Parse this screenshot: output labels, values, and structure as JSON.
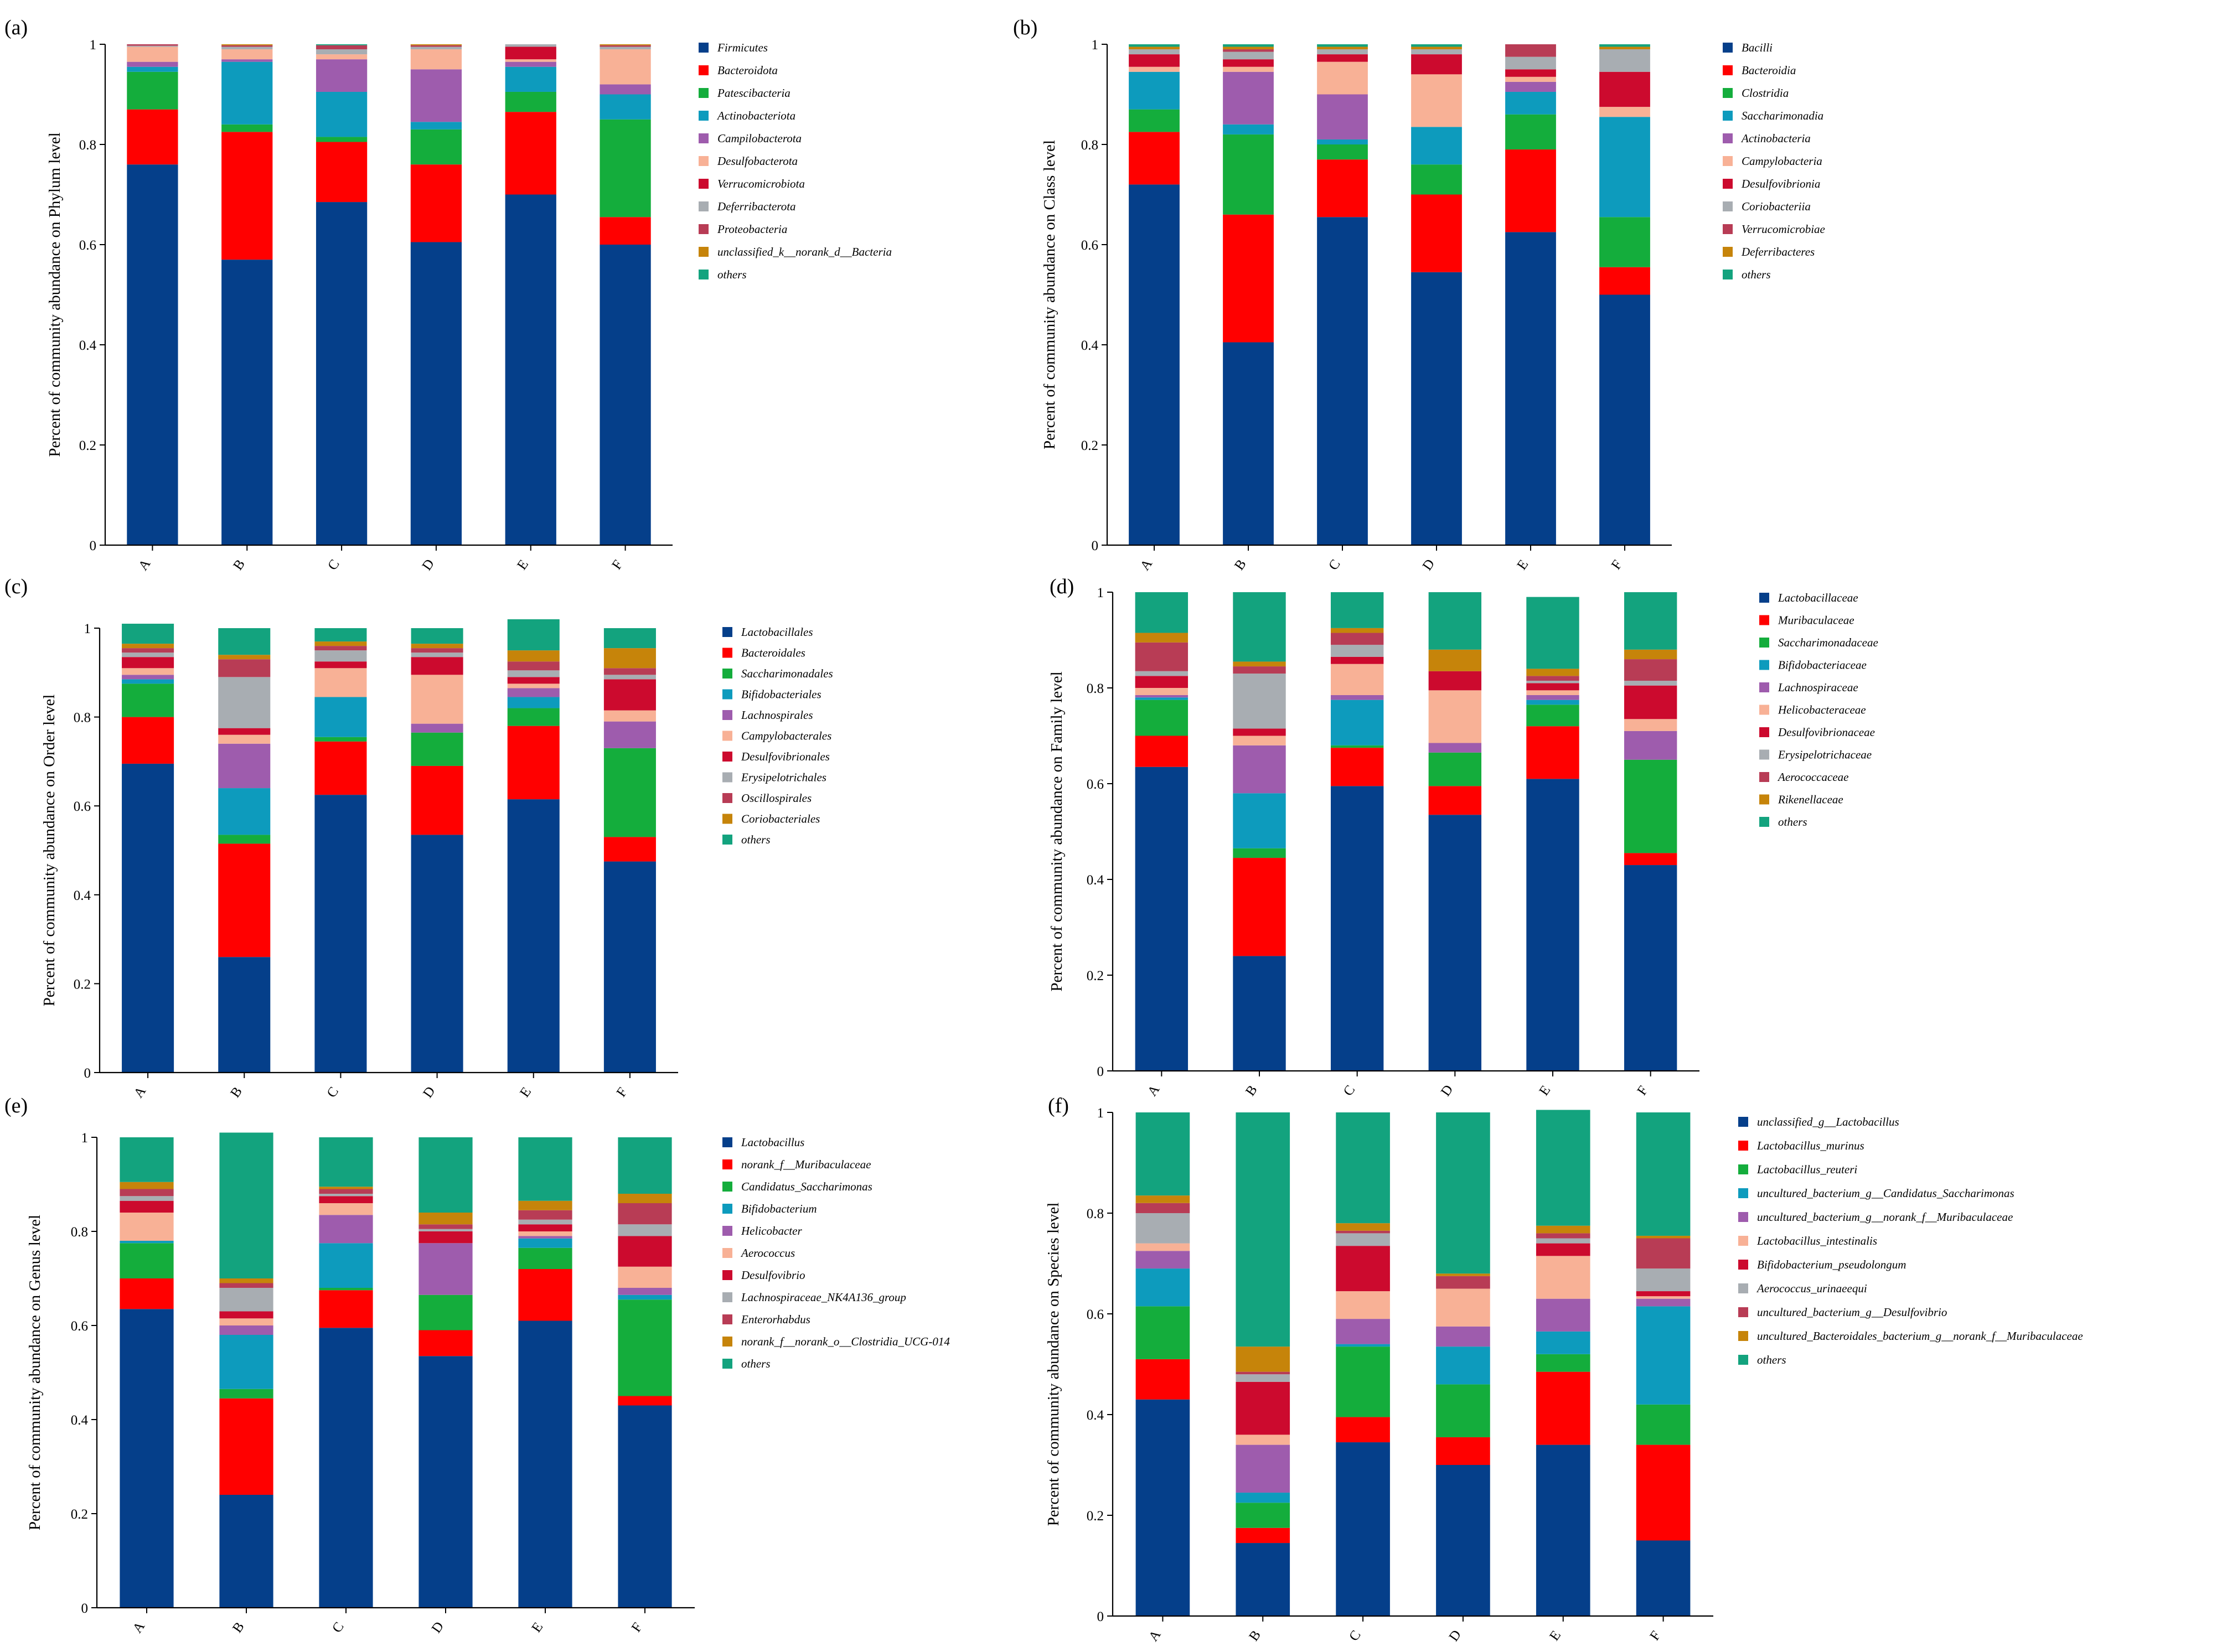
{
  "chart_data": [
    {
      "type": "bar",
      "stacked": true,
      "panel_label": "(a)",
      "ylabel": "Percent of community abundance on Phylum level",
      "ylim": [
        0,
        1
      ],
      "yticks": [
        "0",
        "0.2",
        "0.4",
        "0.6",
        "0.8",
        "1"
      ],
      "categories": [
        "A",
        "B",
        "C",
        "D",
        "E",
        "F"
      ],
      "series": [
        {
          "name": "Firmicutes",
          "color": "#053f8a",
          "values": [
            0.76,
            0.57,
            0.685,
            0.605,
            0.7,
            0.6
          ]
        },
        {
          "name": "Bacteroidota",
          "color": "#ff0000",
          "values": [
            0.11,
            0.255,
            0.12,
            0.155,
            0.165,
            0.055
          ]
        },
        {
          "name": "Patescibacteria",
          "color": "#14ad3c",
          "values": [
            0.075,
            0.015,
            0.01,
            0.07,
            0.04,
            0.195
          ]
        },
        {
          "name": "Actinobacteriota",
          "color": "#0d9bbd",
          "values": [
            0.01,
            0.125,
            0.09,
            0.015,
            0.05,
            0.05
          ]
        },
        {
          "name": "Campilobacterota",
          "color": "#9e5cad",
          "values": [
            0.01,
            0.005,
            0.065,
            0.105,
            0.01,
            0.02
          ]
        },
        {
          "name": "Desulfobacterota",
          "color": "#f8b196",
          "values": [
            0.03,
            0.02,
            0.01,
            0.04,
            0.005,
            0.07
          ]
        },
        {
          "name": "Verrucomicrobiota",
          "color": "#cc0a2e",
          "values": [
            0.0,
            0.0,
            0.0,
            0.0,
            0.025,
            0.0
          ]
        },
        {
          "name": "Deferribacterota",
          "color": "#a8adb2",
          "values": [
            0.002,
            0.005,
            0.01,
            0.005,
            0.005,
            0.005
          ]
        },
        {
          "name": "Proteobacteria",
          "color": "#b83c55",
          "values": [
            0.003,
            0.003,
            0.008,
            0.003,
            0.0,
            0.003
          ]
        },
        {
          "name": "unclassified_k__norank_d__Bacteria",
          "color": "#c6840a",
          "values": [
            0.0,
            0.002,
            0.0,
            0.002,
            0.0,
            0.002
          ]
        },
        {
          "name": "others",
          "color": "#13a37e",
          "values": [
            0.0,
            0.0,
            0.002,
            0.0,
            0.0,
            0.0
          ]
        }
      ]
    },
    {
      "type": "bar",
      "stacked": true,
      "panel_label": "(b)",
      "ylabel": "Percent of community abundance on Class level",
      "ylim": [
        0,
        1
      ],
      "yticks": [
        "0",
        "0.2",
        "0.4",
        "0.6",
        "0.8",
        "1"
      ],
      "categories": [
        "A",
        "B",
        "C",
        "D",
        "E",
        "F"
      ],
      "series": [
        {
          "name": "Bacilli",
          "color": "#053f8a",
          "values": [
            0.72,
            0.405,
            0.655,
            0.545,
            0.625,
            0.5
          ]
        },
        {
          "name": "Bacteroidia",
          "color": "#ff0000",
          "values": [
            0.105,
            0.255,
            0.115,
            0.155,
            0.165,
            0.055
          ]
        },
        {
          "name": "Clostridia",
          "color": "#14ad3c",
          "values": [
            0.045,
            0.16,
            0.03,
            0.06,
            0.07,
            0.1
          ]
        },
        {
          "name": "Saccharimonadia",
          "color": "#0d9bbd",
          "values": [
            0.075,
            0.02,
            0.01,
            0.075,
            0.045,
            0.2
          ]
        },
        {
          "name": "Actinobacteria",
          "color": "#9e5cad",
          "values": [
            0.0,
            0.105,
            0.09,
            0.0,
            0.02,
            0.0
          ]
        },
        {
          "name": "Campylobacteria",
          "color": "#f8b196",
          "values": [
            0.01,
            0.01,
            0.065,
            0.105,
            0.01,
            0.02
          ]
        },
        {
          "name": "Desulfovibrionia",
          "color": "#cc0a2e",
          "values": [
            0.025,
            0.015,
            0.015,
            0.04,
            0.015,
            0.07
          ]
        },
        {
          "name": "Coriobacteriia",
          "color": "#a8adb2",
          "values": [
            0.01,
            0.015,
            0.01,
            0.01,
            0.025,
            0.045
          ]
        },
        {
          "name": "Verrucomicrobiae",
          "color": "#b83c55",
          "values": [
            0.0,
            0.005,
            0.0,
            0.0,
            0.025,
            0.0
          ]
        },
        {
          "name": "Deferribacteres",
          "color": "#c6840a",
          "values": [
            0.005,
            0.005,
            0.005,
            0.005,
            0.0,
            0.005
          ]
        },
        {
          "name": "others",
          "color": "#13a37e",
          "values": [
            0.005,
            0.005,
            0.005,
            0.005,
            0.0,
            0.005
          ]
        }
      ]
    },
    {
      "type": "bar",
      "stacked": true,
      "panel_label": "(c)",
      "ylabel": "Percent of community abundance on Order level",
      "ylim": [
        0,
        1
      ],
      "yticks": [
        "0",
        "0.2",
        "0.4",
        "0.6",
        "0.8",
        "1"
      ],
      "categories": [
        "A",
        "B",
        "C",
        "D",
        "E",
        "F"
      ],
      "series": [
        {
          "name": "Lactobacillales",
          "color": "#053f8a",
          "values": [
            0.695,
            0.26,
            0.625,
            0.535,
            0.615,
            0.475
          ]
        },
        {
          "name": "Bacteroidales",
          "color": "#ff0000",
          "values": [
            0.105,
            0.255,
            0.12,
            0.155,
            0.165,
            0.055
          ]
        },
        {
          "name": "Saccharimonadales",
          "color": "#14ad3c",
          "values": [
            0.075,
            0.02,
            0.01,
            0.075,
            0.04,
            0.2
          ]
        },
        {
          "name": "Bifidobacteriales",
          "color": "#0d9bbd",
          "values": [
            0.01,
            0.105,
            0.09,
            0.0,
            0.025,
            0.0
          ]
        },
        {
          "name": "Lachnospirales",
          "color": "#9e5cad",
          "values": [
            0.01,
            0.1,
            0.0,
            0.02,
            0.02,
            0.06
          ]
        },
        {
          "name": "Campylobacterales",
          "color": "#f8b196",
          "values": [
            0.015,
            0.02,
            0.065,
            0.11,
            0.01,
            0.025
          ]
        },
        {
          "name": "Desulfovibrionales",
          "color": "#cc0a2e",
          "values": [
            0.025,
            0.015,
            0.015,
            0.04,
            0.015,
            0.07
          ]
        },
        {
          "name": "Erysipelotrichales",
          "color": "#a8adb2",
          "values": [
            0.01,
            0.115,
            0.025,
            0.01,
            0.015,
            0.01
          ]
        },
        {
          "name": "Oscillospirales",
          "color": "#b83c55",
          "values": [
            0.01,
            0.04,
            0.01,
            0.01,
            0.02,
            0.015
          ]
        },
        {
          "name": "Coriobacteriales",
          "color": "#c6840a",
          "values": [
            0.01,
            0.01,
            0.01,
            0.01,
            0.025,
            0.045
          ]
        },
        {
          "name": "others",
          "color": "#13a37e",
          "values": [
            0.045,
            0.06,
            0.03,
            0.035,
            0.07,
            0.045
          ]
        }
      ]
    },
    {
      "type": "bar",
      "stacked": true,
      "panel_label": "(d)",
      "ylabel": "Percent of community abundance on Family level",
      "ylim": [
        0,
        1
      ],
      "yticks": [
        "0",
        "0.2",
        "0.4",
        "0.6",
        "0.8",
        "1"
      ],
      "categories": [
        "A",
        "B",
        "C",
        "D",
        "E",
        "F"
      ],
      "series": [
        {
          "name": "Lactobacillaceae",
          "color": "#053f8a",
          "values": [
            0.635,
            0.24,
            0.595,
            0.535,
            0.61,
            0.43
          ]
        },
        {
          "name": "Muribaculaceae",
          "color": "#ff0000",
          "values": [
            0.065,
            0.205,
            0.08,
            0.06,
            0.11,
            0.025
          ]
        },
        {
          "name": "Saccharimonadaceae",
          "color": "#14ad3c",
          "values": [
            0.075,
            0.02,
            0.005,
            0.07,
            0.045,
            0.195
          ]
        },
        {
          "name": "Bifidobacteriaceae",
          "color": "#0d9bbd",
          "values": [
            0.005,
            0.115,
            0.095,
            0.0,
            0.01,
            0.0
          ]
        },
        {
          "name": "Lachnospiraceae",
          "color": "#9e5cad",
          "values": [
            0.005,
            0.1,
            0.01,
            0.02,
            0.01,
            0.06
          ]
        },
        {
          "name": "Helicobacteraceae",
          "color": "#f8b196",
          "values": [
            0.015,
            0.02,
            0.065,
            0.11,
            0.01,
            0.025
          ]
        },
        {
          "name": "Desulfovibrionaceae",
          "color": "#cc0a2e",
          "values": [
            0.025,
            0.015,
            0.015,
            0.04,
            0.015,
            0.07
          ]
        },
        {
          "name": "Erysipelotrichaceae",
          "color": "#a8adb2",
          "values": [
            0.01,
            0.115,
            0.025,
            0.0,
            0.005,
            0.01
          ]
        },
        {
          "name": "Aerococcaceae",
          "color": "#b83c55",
          "values": [
            0.06,
            0.015,
            0.025,
            0.0,
            0.01,
            0.045
          ]
        },
        {
          "name": "Rikenellaceae",
          "color": "#c6840a",
          "values": [
            0.02,
            0.01,
            0.01,
            0.045,
            0.015,
            0.02
          ]
        },
        {
          "name": "others",
          "color": "#13a37e",
          "values": [
            0.085,
            0.145,
            0.075,
            0.12,
            0.15,
            0.12
          ]
        }
      ]
    },
    {
      "type": "bar",
      "stacked": true,
      "panel_label": "(e)",
      "ylabel": "Percent of community abundance on Genus level",
      "ylim": [
        0,
        1
      ],
      "yticks": [
        "0",
        "0.2",
        "0.4",
        "0.6",
        "0.8",
        "1"
      ],
      "categories": [
        "A",
        "B",
        "C",
        "D",
        "E",
        "F"
      ],
      "series": [
        {
          "name": "Lactobacillus",
          "color": "#053f8a",
          "values": [
            0.635,
            0.24,
            0.595,
            0.535,
            0.61,
            0.43
          ]
        },
        {
          "name": "norank_f__Muribaculaceae",
          "color": "#ff0000",
          "values": [
            0.065,
            0.205,
            0.08,
            0.055,
            0.11,
            0.02
          ]
        },
        {
          "name": "Candidatus_Saccharimonas",
          "color": "#14ad3c",
          "values": [
            0.075,
            0.02,
            0.005,
            0.075,
            0.045,
            0.205
          ]
        },
        {
          "name": "Bifidobacterium",
          "color": "#0d9bbd",
          "values": [
            0.005,
            0.115,
            0.095,
            0.0,
            0.02,
            0.01
          ]
        },
        {
          "name": "Helicobacter",
          "color": "#9e5cad",
          "values": [
            0.0,
            0.02,
            0.06,
            0.11,
            0.005,
            0.015
          ]
        },
        {
          "name": "Aerococcus",
          "color": "#f8b196",
          "values": [
            0.06,
            0.015,
            0.025,
            0.0,
            0.01,
            0.045
          ]
        },
        {
          "name": "Desulfovibrio",
          "color": "#cc0a2e",
          "values": [
            0.025,
            0.015,
            0.015,
            0.025,
            0.015,
            0.065
          ]
        },
        {
          "name": "Lachnospiraceae_NK4A136_group",
          "color": "#a8adb2",
          "values": [
            0.01,
            0.05,
            0.005,
            0.005,
            0.01,
            0.025
          ]
        },
        {
          "name": "Enterorhabdus",
          "color": "#b83c55",
          "values": [
            0.015,
            0.01,
            0.01,
            0.01,
            0.02,
            0.045
          ]
        },
        {
          "name": "norank_f__norank_o__Clostridia_UCG-014",
          "color": "#c6840a",
          "values": [
            0.015,
            0.01,
            0.005,
            0.025,
            0.02,
            0.02
          ]
        },
        {
          "name": "others",
          "color": "#13a37e",
          "values": [
            0.095,
            0.31,
            0.105,
            0.16,
            0.135,
            0.12
          ]
        }
      ]
    },
    {
      "type": "bar",
      "stacked": true,
      "panel_label": "(f)",
      "ylabel": "Percent of community abundance on Species level",
      "ylim": [
        0,
        1
      ],
      "yticks": [
        "0",
        "0.2",
        "0.4",
        "0.6",
        "0.8",
        "1"
      ],
      "categories": [
        "A",
        "B",
        "C",
        "D",
        "E",
        "F"
      ],
      "series": [
        {
          "name": "unclassified_g__Lactobacillus",
          "color": "#053f8a",
          "values": [
            0.43,
            0.145,
            0.345,
            0.3,
            0.34,
            0.15
          ]
        },
        {
          "name": "Lactobacillus_murinus",
          "color": "#ff0000",
          "values": [
            0.08,
            0.03,
            0.05,
            0.055,
            0.145,
            0.19
          ]
        },
        {
          "name": "Lactobacillus_reuteri",
          "color": "#14ad3c",
          "values": [
            0.105,
            0.05,
            0.14,
            0.105,
            0.035,
            0.08
          ]
        },
        {
          "name": "uncultured_bacterium_g__Candidatus_Saccharimonas",
          "color": "#0d9bbd",
          "values": [
            0.075,
            0.02,
            0.005,
            0.075,
            0.045,
            0.195
          ]
        },
        {
          "name": "uncultured_bacterium_g__norank_f__Muribaculaceae",
          "color": "#9e5cad",
          "values": [
            0.035,
            0.095,
            0.05,
            0.04,
            0.065,
            0.015
          ]
        },
        {
          "name": "Lactobacillus_intestinalis",
          "color": "#f8b196",
          "values": [
            0.015,
            0.02,
            0.055,
            0.075,
            0.085,
            0.005
          ]
        },
        {
          "name": "Bifidobacterium_pseudolongum",
          "color": "#cc0a2e",
          "values": [
            0.0,
            0.105,
            0.09,
            0.0,
            0.025,
            0.01
          ]
        },
        {
          "name": "Aerococcus_urinaeequi",
          "color": "#a8adb2",
          "values": [
            0.06,
            0.015,
            0.025,
            0.0,
            0.01,
            0.045
          ]
        },
        {
          "name": "uncultured_bacterium_g__Desulfovibrio",
          "color": "#b83c55",
          "values": [
            0.02,
            0.005,
            0.005,
            0.025,
            0.01,
            0.06
          ]
        },
        {
          "name": "uncultured_Bacteroidales_bacterium_g__norank_f__Muribaculaceae",
          "color": "#c6840a",
          "values": [
            0.015,
            0.05,
            0.015,
            0.005,
            0.015,
            0.005
          ]
        },
        {
          "name": "others",
          "color": "#13a37e",
          "values": [
            0.165,
            0.465,
            0.22,
            0.32,
            0.23,
            0.245
          ]
        }
      ]
    }
  ]
}
